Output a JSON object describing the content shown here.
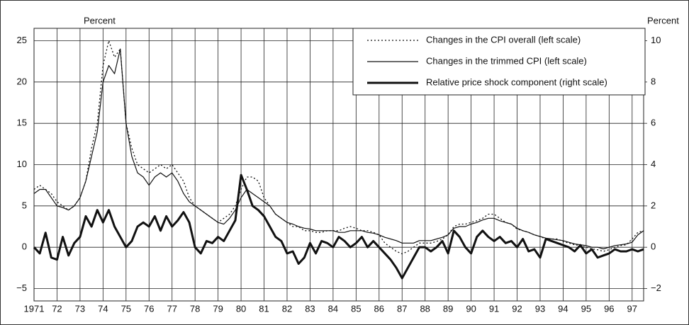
{
  "chart_data": {
    "type": "line",
    "y_label": "Percent",
    "y2_label": "Percent",
    "xlim": [
      1971,
      1997.5
    ],
    "xticks": [
      {
        "value": 1971,
        "label": "1971"
      },
      {
        "value": 1972,
        "label": "72"
      },
      {
        "value": 1973,
        "label": "73"
      },
      {
        "value": 1974,
        "label": "74"
      },
      {
        "value": 1975,
        "label": "75"
      },
      {
        "value": 1976,
        "label": "76"
      },
      {
        "value": 1977,
        "label": "77"
      },
      {
        "value": 1978,
        "label": "78"
      },
      {
        "value": 1979,
        "label": "79"
      },
      {
        "value": 1980,
        "label": "80"
      },
      {
        "value": 1981,
        "label": "81"
      },
      {
        "value": 1982,
        "label": "82"
      },
      {
        "value": 1983,
        "label": "83"
      },
      {
        "value": 1984,
        "label": "84"
      },
      {
        "value": 1985,
        "label": "85"
      },
      {
        "value": 1986,
        "label": "86"
      },
      {
        "value": 1987,
        "label": "87"
      },
      {
        "value": 1988,
        "label": "88"
      },
      {
        "value": 1989,
        "label": "89"
      },
      {
        "value": 1990,
        "label": "90"
      },
      {
        "value": 1991,
        "label": "91"
      },
      {
        "value": 1992,
        "label": "92"
      },
      {
        "value": 1993,
        "label": "93"
      },
      {
        "value": 1994,
        "label": "94"
      },
      {
        "value": 1995,
        "label": "95"
      },
      {
        "value": 1996,
        "label": "96"
      },
      {
        "value": 1997,
        "label": "97"
      }
    ],
    "ylim": [
      -6.5,
      26.5
    ],
    "yticks": [
      {
        "value": -5,
        "label": "−5"
      },
      0,
      5,
      10,
      15,
      20,
      25
    ],
    "y2lim": [
      -2.6,
      10.6
    ],
    "y2ticks": [
      {
        "value": -2,
        "label": "−2"
      },
      0,
      2,
      4,
      6,
      8,
      10
    ],
    "grid": true,
    "legend": "top-right",
    "x": [
      1971,
      1971.25,
      1971.5,
      1971.75,
      1972,
      1972.25,
      1972.5,
      1972.75,
      1973,
      1973.25,
      1973.5,
      1973.75,
      1974,
      1974.25,
      1974.5,
      1974.75,
      1975,
      1975.25,
      1975.5,
      1975.75,
      1976,
      1976.25,
      1976.5,
      1976.75,
      1977,
      1977.25,
      1977.5,
      1977.75,
      1978,
      1978.25,
      1978.5,
      1978.75,
      1979,
      1979.25,
      1979.5,
      1979.75,
      1980,
      1980.25,
      1980.5,
      1980.75,
      1981,
      1981.25,
      1981.5,
      1981.75,
      1982,
      1982.25,
      1982.5,
      1982.75,
      1983,
      1983.25,
      1983.5,
      1983.75,
      1984,
      1984.25,
      1984.5,
      1984.75,
      1985,
      1985.25,
      1985.5,
      1985.75,
      1986,
      1986.25,
      1986.5,
      1986.75,
      1987,
      1987.25,
      1987.5,
      1987.75,
      1988,
      1988.25,
      1988.5,
      1988.75,
      1989,
      1989.25,
      1989.5,
      1989.75,
      1990,
      1990.25,
      1990.5,
      1990.75,
      1991,
      1991.25,
      1991.5,
      1991.75,
      1992,
      1992.25,
      1992.5,
      1992.75,
      1993,
      1993.25,
      1993.5,
      1993.75,
      1994,
      1994.25,
      1994.5,
      1994.75,
      1995,
      1995.25,
      1995.5,
      1995.75,
      1996,
      1996.25,
      1996.5,
      1996.75,
      1997,
      1997.25,
      1997.5
    ],
    "series": [
      {
        "name": "Changes in the CPI overall (left scale)",
        "color": "#111111",
        "line_style": "dotted",
        "line_width": 1.3,
        "values": [
          7,
          7.5,
          7,
          6.5,
          5.5,
          5,
          4.5,
          5,
          6,
          8,
          12,
          15,
          22,
          25,
          23,
          24,
          15,
          12,
          10,
          9.5,
          9,
          9.5,
          10,
          9.5,
          10,
          9,
          8,
          6,
          5,
          4.5,
          4,
          3.5,
          3,
          3.5,
          4,
          5,
          7,
          8.5,
          8.5,
          8,
          6,
          5,
          4,
          3.5,
          3,
          2.5,
          2.5,
          2,
          2,
          1.8,
          1.8,
          2,
          2,
          2,
          2.3,
          2.5,
          2.3,
          2,
          2,
          1.8,
          1.5,
          0.5,
          0,
          -0.5,
          -0.8,
          -0.5,
          0,
          0.5,
          0.5,
          0.5,
          0.7,
          1,
          1.5,
          2.5,
          2.8,
          2.8,
          3,
          3.2,
          3.5,
          4,
          4,
          3.5,
          3,
          2.8,
          2.2,
          2,
          1.8,
          1.5,
          1.3,
          1,
          1,
          1,
          0.7,
          0.5,
          0.3,
          0.2,
          0,
          -0.2,
          -0.3,
          -0.5,
          -0.3,
          0,
          0.2,
          0.3,
          1,
          1.8,
          2
        ]
      },
      {
        "name": "Changes in the trimmed CPI (left scale)",
        "color": "#111111",
        "line_style": "solid",
        "line_width": 1.2,
        "values": [
          6.5,
          7,
          7,
          6,
          5,
          4.8,
          4.5,
          5,
          6,
          8,
          11,
          14,
          20,
          22,
          21,
          24,
          15,
          11,
          9,
          8.5,
          7.5,
          8.5,
          9,
          8.5,
          9,
          8,
          6.5,
          5.5,
          5,
          4.5,
          4,
          3.5,
          3,
          2.8,
          3.5,
          4.5,
          6,
          7,
          6.5,
          6,
          5.5,
          5,
          4,
          3.5,
          3,
          2.8,
          2.5,
          2.3,
          2.2,
          2,
          2,
          2,
          2,
          1.8,
          1.8,
          2,
          2,
          2,
          1.8,
          1.7,
          1.5,
          1.2,
          1,
          0.8,
          0.5,
          0.5,
          0.5,
          0.8,
          0.8,
          0.8,
          1,
          1.2,
          1.5,
          2.3,
          2.5,
          2.5,
          2.8,
          3,
          3.3,
          3.5,
          3.5,
          3.2,
          3,
          2.8,
          2.3,
          2,
          1.8,
          1.5,
          1.3,
          1.1,
          1,
          0.9,
          0.8,
          0.6,
          0.4,
          0.3,
          0.2,
          0,
          0,
          -0.2,
          0,
          0.2,
          0.3,
          0.4,
          0.6,
          1.5,
          2
        ]
      },
      {
        "name": "Relative price shock component (right scale)",
        "color": "#111111",
        "line_style": "solid",
        "line_width": 3,
        "axis": "y2",
        "values": [
          0,
          -0.3,
          0.7,
          -0.5,
          -0.6,
          0.5,
          -0.4,
          0.2,
          0.5,
          1.5,
          1,
          1.8,
          1.2,
          1.8,
          1,
          0.5,
          0,
          0.3,
          1,
          1.2,
          1,
          1.5,
          0.8,
          1.5,
          1,
          1.3,
          1.7,
          1.2,
          0,
          -0.3,
          0.3,
          0.2,
          0.5,
          0.3,
          0.8,
          1.3,
          3.5,
          2.8,
          2,
          1.8,
          1.5,
          1,
          0.5,
          0.3,
          -0.3,
          -0.2,
          -0.8,
          -0.5,
          0.2,
          -0.3,
          0.3,
          0.2,
          0,
          0.5,
          0.3,
          0,
          0.2,
          0.5,
          0,
          0.3,
          0,
          -0.3,
          -0.6,
          -1,
          -1.5,
          -1,
          -0.5,
          0,
          0,
          -0.2,
          0,
          0.3,
          -0.3,
          0.8,
          0.5,
          0,
          -0.3,
          0.5,
          0.8,
          0.5,
          0.3,
          0.5,
          0.2,
          0.3,
          0,
          0.4,
          -0.2,
          -0.1,
          -0.5,
          0.4,
          0.3,
          0.2,
          0.1,
          0,
          -0.2,
          0.1,
          -0.3,
          -0.1,
          -0.5,
          -0.4,
          -0.3,
          -0.1,
          -0.2,
          -0.2,
          -0.1,
          -0.2,
          -0.1
        ]
      }
    ]
  }
}
